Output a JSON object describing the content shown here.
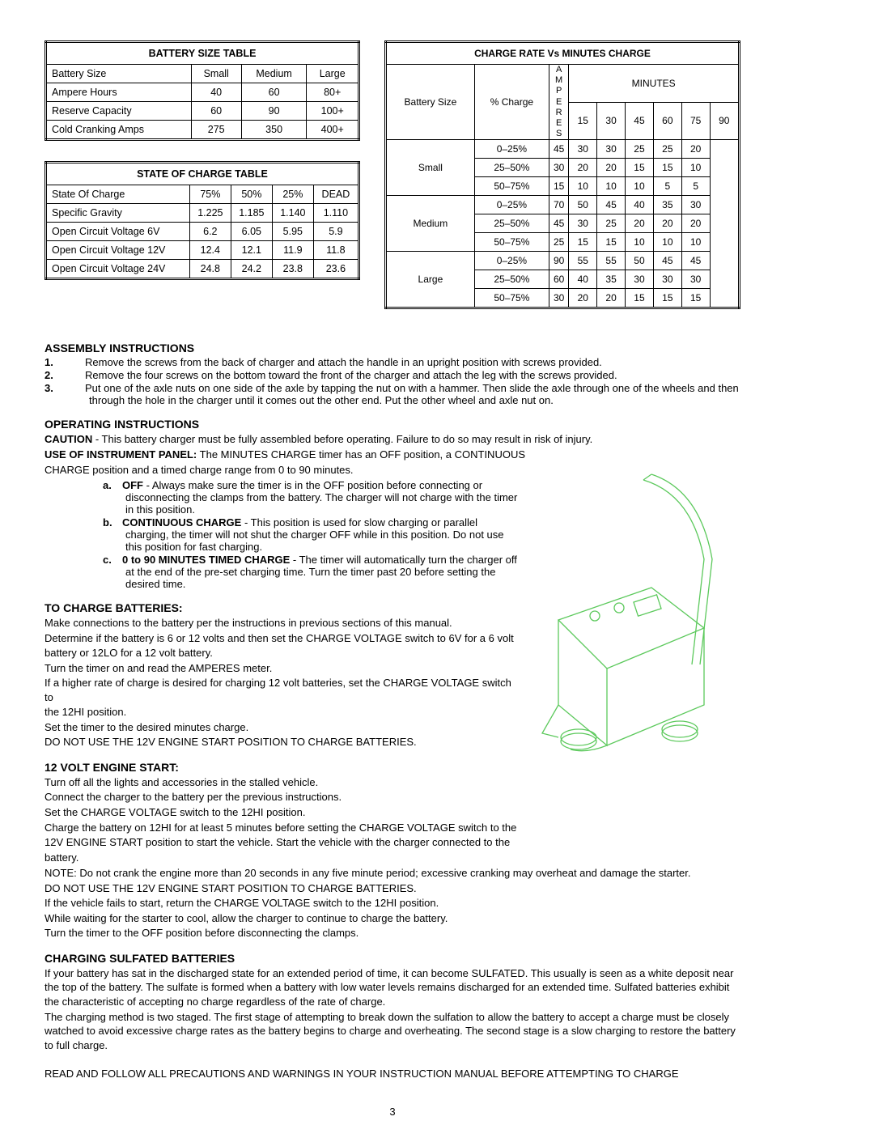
{
  "batterySizeTable": {
    "title": "BATTERY SIZE TABLE",
    "headers": [
      "Battery Size",
      "Small",
      "Medium",
      "Large"
    ],
    "rows": [
      [
        "Ampere Hours",
        "40",
        "60",
        "80+"
      ],
      [
        "Reserve Capacity",
        "60",
        "90",
        "100+"
      ],
      [
        "Cold Cranking Amps",
        "275",
        "350",
        "400+"
      ]
    ]
  },
  "stateOfChargeTable": {
    "title": "STATE OF CHARGE TABLE",
    "headers": [
      "State Of Charge",
      "75%",
      "50%",
      "25%",
      "DEAD"
    ],
    "rows": [
      [
        "Specific Gravity",
        "1.225",
        "1.185",
        "1.140",
        "1.110"
      ],
      [
        "Open Circuit Voltage 6V",
        "6.2",
        "6.05",
        "5.95",
        "5.9"
      ],
      [
        "Open Circuit Voltage 12V",
        "12.4",
        "12.1",
        "11.9",
        "11.8"
      ],
      [
        "Open Circuit Voltage 24V",
        "24.8",
        "24.2",
        "23.8",
        "23.6"
      ]
    ]
  },
  "chargeRateTable": {
    "title": "CHARGE RATE Vs MINUTES CHARGE",
    "minutesHeader": "MINUTES",
    "ampsLabel": "AMPERES",
    "cols": [
      "Battery Size",
      "% Charge",
      "15",
      "30",
      "45",
      "60",
      "75",
      "90"
    ],
    "groups": [
      {
        "size": "Small",
        "rows": [
          {
            "pct": "0–25%",
            "vals": [
              "45",
              "30",
              "30",
              "25",
              "25",
              "20"
            ]
          },
          {
            "pct": "25–50%",
            "vals": [
              "30",
              "20",
              "20",
              "15",
              "15",
              "10"
            ]
          },
          {
            "pct": "50–75%",
            "vals": [
              "15",
              "10",
              "10",
              "10",
              "5",
              "5"
            ]
          }
        ]
      },
      {
        "size": "Medium",
        "rows": [
          {
            "pct": "0–25%",
            "vals": [
              "70",
              "50",
              "45",
              "40",
              "35",
              "30"
            ]
          },
          {
            "pct": "25–50%",
            "vals": [
              "45",
              "30",
              "25",
              "20",
              "20",
              "20"
            ]
          },
          {
            "pct": "50–75%",
            "vals": [
              "25",
              "15",
              "15",
              "10",
              "10",
              "10"
            ]
          }
        ]
      },
      {
        "size": "Large",
        "rows": [
          {
            "pct": "0–25%",
            "vals": [
              "90",
              "55",
              "55",
              "50",
              "45",
              "45"
            ]
          },
          {
            "pct": "25–50%",
            "vals": [
              "60",
              "40",
              "35",
              "30",
              "30",
              "30"
            ]
          },
          {
            "pct": "50–75%",
            "vals": [
              "30",
              "20",
              "20",
              "15",
              "15",
              "15"
            ]
          }
        ]
      }
    ]
  },
  "sections": {
    "assembly": {
      "title": "ASSEMBLY INSTRUCTIONS",
      "items": [
        "Remove the screws from the back of charger and attach the handle in an upright position with screws provided.",
        "Remove the four screws on the bottom toward the front of the charger and attach the leg with the screws provided.",
        "Put one of the axle nuts on one side of the axle by tapping the nut on with a hammer. Then slide the axle through one of the wheels and then through the hole in the charger until it comes out the other end. Put the other wheel and axle nut on."
      ]
    },
    "operating": {
      "title": "OPERATING INSTRUCTIONS",
      "caution_label": "CAUTION",
      "caution": " - This battery charger must be fully assembled before operating.  Failure to do so may result in risk of  injury.",
      "panel_label": "USE OF INSTRUMENT PANEL:",
      "panel": " The MINUTES CHARGE timer has an OFF position, a CONTINUOUS",
      "panel2": "CHARGE position and a timed charge range from 0 to 90 minutes.",
      "alpha": [
        {
          "l": "a.",
          "b": "OFF",
          "t": " - Always make sure the timer is in the OFF position before connecting or disconnecting the clamps from the battery.  The charger will not charge with the timer in this position."
        },
        {
          "l": "b.",
          "b": "CONTINUOUS CHARGE",
          "t": " - This position is used for slow charging or parallel charging, the timer will not shut the charger OFF while in this position.  Do not use this position for fast charging."
        },
        {
          "l": "c.",
          "b": "0 to 90 MINUTES TIMED CHARGE",
          "t": " - The timer will automatically turn the charger off at the end of the pre-set charging time.  Turn the timer past 20 before setting the desired time."
        }
      ]
    },
    "charge": {
      "title": "TO CHARGE BATTERIES:",
      "lines": [
        "Make connections to the battery per the instructions in previous sections of this manual.",
        "Determine if the battery is 6 or 12 volts and then set the CHARGE VOLTAGE switch to 6V for a 6 volt",
        "battery or 12LO for a 12 volt battery.",
        "Turn the timer on and read the AMPERES meter.",
        "If a higher rate of charge is desired for charging 12 volt batteries, set the CHARGE VOLTAGE switch to",
        "the 12HI position.",
        "Set the timer to the desired minutes charge.",
        "DO NOT USE THE 12V ENGINE START POSITION TO CHARGE BATTERIES."
      ]
    },
    "engine": {
      "title": "12 VOLT ENGINE START:",
      "lines": [
        "Turn off all the lights and accessories in the stalled vehicle.",
        "Connect the charger to the battery per the previous instructions.",
        "Set the CHARGE VOLTAGE switch to the 12HI position.",
        "Charge the battery on 12HI for at least 5 minutes before setting the CHARGE VOLTAGE switch to the",
        "12V ENGINE START position to start the vehicle.  Start the vehicle with the charger connected to the",
        "battery."
      ],
      "lines2": [
        "NOTE: Do not crank the engine more than 20 seconds in any five minute period; excessive cranking may overheat and damage the starter.",
        "DO NOT USE THE 12V ENGINE START POSITION TO CHARGE BATTERIES.",
        "If the vehicle fails to start, return the CHARGE VOLTAGE switch to the 12HI position.",
        "While waiting for the starter to cool, allow the charger to continue to charge the battery.",
        "Turn the timer to the OFF position before disconnecting the clamps."
      ]
    },
    "sulfated": {
      "title": "CHARGING SULFATED BATTERIES",
      "paras": [
        "If your battery has sat in the discharged state for an extended period of time, it can become SULFATED.  This usually is seen as a white deposit near the top of the battery.  The sulfate is formed when a battery with low water levels remains discharged for an extended time.  Sulfated batteries exhibit the characteristic of accepting no charge regardless of the rate of charge.",
        "The charging method is two staged.  The first stage of attempting to break down the sulfation to allow the battery to accept a charge must be closely watched to avoid excessive charge rates as the battery begins to charge and overheating.  The second stage is a slow charging to restore the battery to full charge."
      ]
    },
    "footer": "READ AND FOLLOW ALL PRECAUTIONS AND WARNINGS IN YOUR INSTRUCTION MANUAL BEFORE ATTEMPTING TO CHARGE",
    "pageNum": "3"
  },
  "style": {
    "device_color": "#5cc95c"
  }
}
